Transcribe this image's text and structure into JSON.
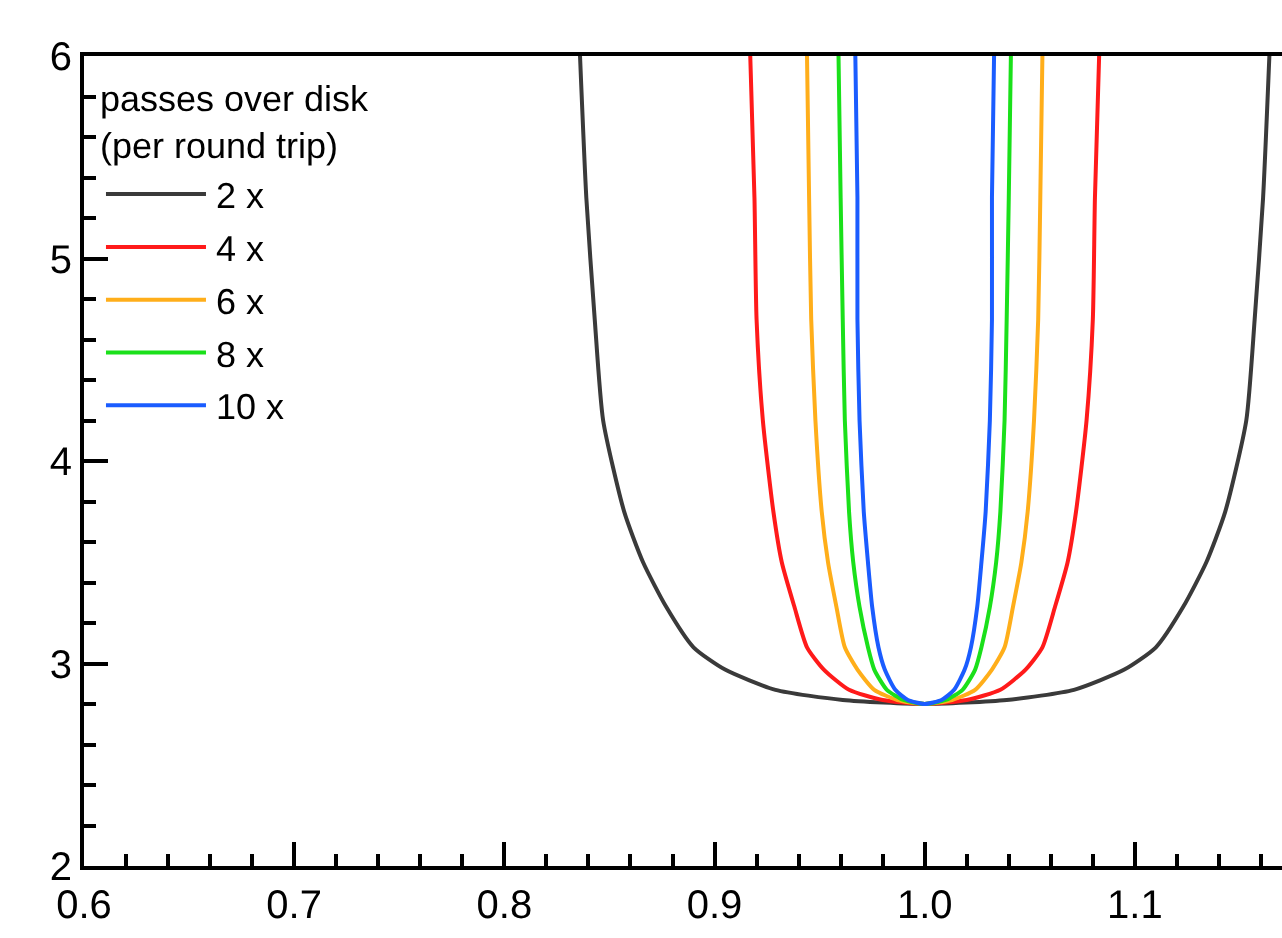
{
  "chart_data": {
    "type": "line",
    "legend_title": "passes over disk\n(per round trip)",
    "legend": "top left",
    "grid": false,
    "marker": "none",
    "line_style": "solid",
    "xlim": [
      0.6,
      1.17
    ],
    "xticks": [
      0.6,
      0.7,
      0.8,
      0.9,
      {
        "value": 1.0,
        "label": "1.0"
      },
      1.1
    ],
    "ylim": [
      2,
      6
    ],
    "yticks": [
      2,
      3,
      4,
      5,
      6
    ],
    "series": [
      {
        "name": "2 x",
        "color": "#3a3a3a",
        "x": [
          0.836,
          0.839,
          0.843,
          0.847,
          0.857,
          0.866,
          0.877,
          0.89,
          0.905,
          0.929,
          0.961,
          1.0,
          1.039,
          1.071,
          1.095,
          1.11,
          1.123,
          1.134,
          1.143,
          1.153,
          1.157,
          1.161,
          1.164
        ],
        "values": [
          6,
          5.3,
          4.7,
          4.2,
          3.75,
          3.5,
          3.28,
          3.08,
          2.97,
          2.87,
          2.82,
          2.8,
          2.82,
          2.87,
          2.97,
          3.08,
          3.28,
          3.5,
          3.75,
          4.2,
          4.7,
          5.3,
          6
        ]
      },
      {
        "name": "4 x",
        "color": "#ff1a1a",
        "x": [
          0.917,
          0.919,
          0.92,
          0.923,
          0.928,
          0.932,
          0.938,
          0.944,
          0.952,
          0.964,
          0.98,
          1.0,
          1.02,
          1.036,
          1.048,
          1.056,
          1.062,
          1.068,
          1.072,
          1.077,
          1.08,
          1.081,
          1.083
        ],
        "values": [
          6,
          5.3,
          4.7,
          4.2,
          3.75,
          3.5,
          3.28,
          3.08,
          2.97,
          2.87,
          2.82,
          2.8,
          2.82,
          2.87,
          2.97,
          3.08,
          3.28,
          3.5,
          3.75,
          4.2,
          4.7,
          5.3,
          6
        ]
      },
      {
        "name": "6 x",
        "color": "#ffae1a",
        "x": [
          0.944,
          0.945,
          0.946,
          0.948,
          0.951,
          0.954,
          0.958,
          0.962,
          0.968,
          0.976,
          0.987,
          1.0,
          1.013,
          1.024,
          1.032,
          1.038,
          1.042,
          1.046,
          1.049,
          1.052,
          1.054,
          1.055,
          1.056
        ],
        "values": [
          6,
          5.3,
          4.7,
          4.2,
          3.75,
          3.5,
          3.28,
          3.08,
          2.97,
          2.87,
          2.82,
          2.8,
          2.82,
          2.87,
          2.97,
          3.08,
          3.28,
          3.5,
          3.75,
          4.2,
          4.7,
          5.3,
          6
        ]
      },
      {
        "name": "8 x",
        "color": "#1ae01a",
        "x": [
          0.959,
          0.96,
          0.961,
          0.962,
          0.964,
          0.966,
          0.969,
          0.973,
          0.976,
          0.982,
          0.99,
          1.0,
          1.01,
          1.018,
          1.024,
          1.027,
          1.031,
          1.034,
          1.036,
          1.038,
          1.039,
          1.04,
          1.041
        ],
        "values": [
          6,
          5.3,
          4.7,
          4.2,
          3.75,
          3.5,
          3.28,
          3.08,
          2.97,
          2.87,
          2.82,
          2.8,
          2.82,
          2.87,
          2.97,
          3.08,
          3.28,
          3.5,
          3.75,
          4.2,
          4.7,
          5.3,
          6
        ]
      },
      {
        "name": "10 x",
        "color": "#1a5cff",
        "x": [
          0.967,
          0.968,
          0.968,
          0.969,
          0.971,
          0.973,
          0.975,
          0.978,
          0.981,
          0.986,
          0.992,
          1.0,
          1.008,
          1.014,
          1.019,
          1.022,
          1.025,
          1.027,
          1.029,
          1.031,
          1.032,
          1.032,
          1.033
        ],
        "values": [
          6,
          5.3,
          4.7,
          4.2,
          3.75,
          3.5,
          3.28,
          3.08,
          2.97,
          2.87,
          2.82,
          2.8,
          2.82,
          2.87,
          2.97,
          3.08,
          3.28,
          3.5,
          3.75,
          4.2,
          4.7,
          5.3,
          6
        ]
      }
    ]
  }
}
